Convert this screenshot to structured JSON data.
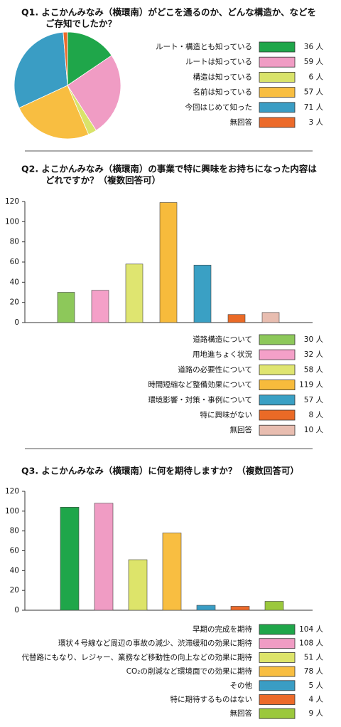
{
  "chart_data": [
    {
      "type": "pie",
      "title": [
        "Q1. よこかんみなみ（横環南）がどこを通るのか、どんな構造か、などを",
        "ご存知でしたか？"
      ],
      "categories": [
        "ルート・構造とも知っている",
        "ルートは知っている",
        "構造は知っている",
        "名前は知っている",
        "今回はじめて知った",
        "無回答"
      ],
      "values": [
        36,
        59,
        6,
        57,
        71,
        3
      ],
      "value_labels": [
        "36 人",
        "59 人",
        "6 人",
        "57 人",
        "71 人",
        "3 人"
      ],
      "colors": [
        "#1fa64a",
        "#f09cc4",
        "#d9e36a",
        "#f8be41",
        "#3a9dc4",
        "#ec6a2a"
      ]
    },
    {
      "type": "bar",
      "title": [
        "Q2. よこかんみなみ（横環南）の事業で特に興味をお持ちになった内容は",
        "どれですか？（複数回答可）"
      ],
      "categories": [
        "道路構造について",
        "用地進ちょく状況",
        "道路の必要性について",
        "時間短縮など整備効果について",
        "環境影響・対策・事例について",
        "特に興味がない",
        "無回答"
      ],
      "values": [
        30,
        32,
        58,
        119,
        57,
        8,
        10
      ],
      "value_labels": [
        "30 人",
        "32 人",
        "58 人",
        "119 人",
        "57 人",
        "8 人",
        "10 人"
      ],
      "colors": [
        "#8dc85a",
        "#f4a0c8",
        "#dfe570",
        "#f7bb3c",
        "#3aa0c4",
        "#ea6a26",
        "#e8bdb0"
      ],
      "ylim": [
        0,
        120
      ],
      "yticks": [
        0,
        20,
        40,
        60,
        80,
        100,
        120
      ]
    },
    {
      "type": "bar",
      "title": [
        "Q3. よこかんみなみ（横環南）に何を期待しますか？（複数回答可）"
      ],
      "categories": [
        "早期の完成を期待",
        "環状４号線など周辺の事故の減少、渋滞緩和の効果に期待",
        "代替路にもなり、レジャー、業務など移動性の向上などの効果に期待",
        "CO₂の削減など環境面での効果に期待",
        "その他",
        "特に期待するものはない",
        "無回答"
      ],
      "values": [
        104,
        108,
        51,
        78,
        5,
        4,
        9
      ],
      "value_labels": [
        "104 人",
        "108 人",
        "51 人",
        "78 人",
        "5 人",
        "4 人",
        "9 人"
      ],
      "colors": [
        "#1fa64a",
        "#f09cc4",
        "#dde46a",
        "#f8be41",
        "#3a9dc4",
        "#ec6a2a",
        "#9bc83c"
      ],
      "ylim": [
        0,
        120
      ],
      "yticks": [
        0,
        20,
        40,
        60,
        80,
        100,
        120
      ]
    }
  ]
}
